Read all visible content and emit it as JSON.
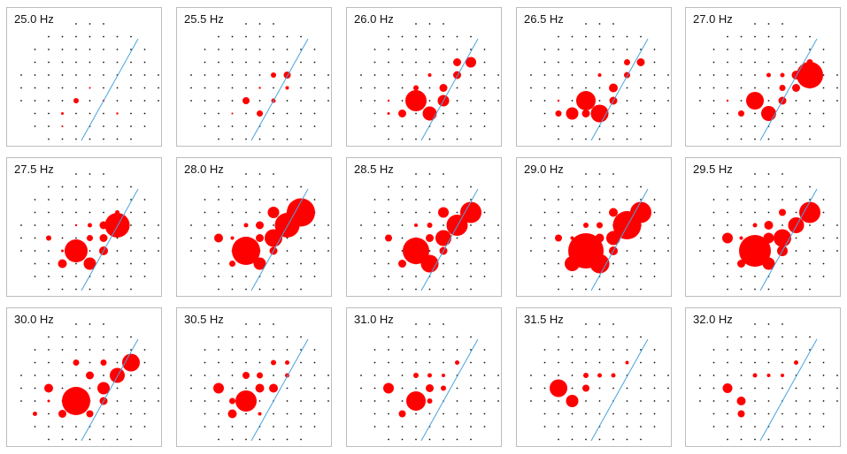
{
  "chart_data": {
    "type": "scatter",
    "colors": {
      "dot": "#111111",
      "bubble": "#ff0000",
      "line": "#4aa3df",
      "panel_border": "#bdbdbd"
    },
    "panels": [
      {
        "title": "25.0 Hz",
        "bubbles": [
          {
            "x": 6,
            "y": 6,
            "r": 1.2
          },
          {
            "x": 7,
            "y": 7,
            "r": 1.2
          },
          {
            "x": 5,
            "y": 5,
            "r": 1.0
          },
          {
            "x": 4,
            "y": 6,
            "r": 3.0
          },
          {
            "x": 3,
            "y": 7,
            "r": 1.5
          },
          {
            "x": 3,
            "y": 8,
            "r": 1.0
          }
        ]
      },
      {
        "title": "25.5 Hz",
        "bubbles": [
          {
            "x": 6,
            "y": 4,
            "r": 3.0
          },
          {
            "x": 7,
            "y": 4,
            "r": 4.0
          },
          {
            "x": 4,
            "y": 6,
            "r": 4.0
          },
          {
            "x": 6,
            "y": 6,
            "r": 2.5
          },
          {
            "x": 5,
            "y": 7,
            "r": 3.5
          },
          {
            "x": 7,
            "y": 5,
            "r": 2.0
          },
          {
            "x": 3,
            "y": 7,
            "r": 1.0
          },
          {
            "x": 5,
            "y": 5,
            "r": 1.2
          }
        ]
      },
      {
        "title": "26.0 Hz",
        "bubbles": [
          {
            "x": 4,
            "y": 6,
            "r": 12.0
          },
          {
            "x": 5,
            "y": 7,
            "r": 8.0
          },
          {
            "x": 6,
            "y": 6,
            "r": 6.5
          },
          {
            "x": 3,
            "y": 7,
            "r": 4.5
          },
          {
            "x": 8,
            "y": 3,
            "r": 6.0
          },
          {
            "x": 6,
            "y": 5,
            "r": 4.5
          },
          {
            "x": 7,
            "y": 3,
            "r": 4.5
          },
          {
            "x": 7,
            "y": 4,
            "r": 4.5
          },
          {
            "x": 4,
            "y": 5,
            "r": 3.0
          },
          {
            "x": 5,
            "y": 4,
            "r": 2.0
          },
          {
            "x": 2,
            "y": 7,
            "r": 1.5
          },
          {
            "x": 2,
            "y": 6,
            "r": 1.2
          }
        ]
      },
      {
        "title": "26.5 Hz",
        "bubbles": [
          {
            "x": 4,
            "y": 6,
            "r": 11.0
          },
          {
            "x": 5,
            "y": 7,
            "r": 10.0
          },
          {
            "x": 3,
            "y": 7,
            "r": 7.0
          },
          {
            "x": 4,
            "y": 7,
            "r": 4.5
          },
          {
            "x": 6,
            "y": 5,
            "r": 5.0
          },
          {
            "x": 8,
            "y": 3,
            "r": 4.5
          },
          {
            "x": 7,
            "y": 3,
            "r": 3.5
          },
          {
            "x": 6,
            "y": 6,
            "r": 4.5
          },
          {
            "x": 7,
            "y": 4,
            "r": 3.5
          },
          {
            "x": 2,
            "y": 7,
            "r": 3.5
          },
          {
            "x": 5,
            "y": 4,
            "r": 2.0
          },
          {
            "x": 2,
            "y": 6,
            "r": 1.2
          }
        ]
      },
      {
        "title": "27.0 Hz",
        "bubbles": [
          {
            "x": 8,
            "y": 4,
            "r": 15.0
          },
          {
            "x": 4,
            "y": 6,
            "r": 10.0
          },
          {
            "x": 5,
            "y": 7,
            "r": 8.5
          },
          {
            "x": 7,
            "y": 4,
            "r": 5.0
          },
          {
            "x": 7,
            "y": 5,
            "r": 4.5
          },
          {
            "x": 6,
            "y": 6,
            "r": 4.5
          },
          {
            "x": 3,
            "y": 7,
            "r": 3.5
          },
          {
            "x": 6,
            "y": 5,
            "r": 3.5
          },
          {
            "x": 8,
            "y": 3,
            "r": 3.5
          },
          {
            "x": 5,
            "y": 4,
            "r": 2.5
          },
          {
            "x": 6,
            "y": 4,
            "r": 2.5
          },
          {
            "x": 2,
            "y": 6,
            "r": 1.2
          }
        ]
      },
      {
        "title": "27.5 Hz",
        "bubbles": [
          {
            "x": 4,
            "y": 6,
            "r": 13.0
          },
          {
            "x": 7,
            "y": 4,
            "r": 14.0
          },
          {
            "x": 5,
            "y": 7,
            "r": 7.0
          },
          {
            "x": 3,
            "y": 7,
            "r": 5.0
          },
          {
            "x": 6,
            "y": 6,
            "r": 5.0
          },
          {
            "x": 6,
            "y": 5,
            "r": 4.5
          },
          {
            "x": 6,
            "y": 4,
            "r": 4.5
          },
          {
            "x": 5,
            "y": 5,
            "r": 3.5
          },
          {
            "x": 5,
            "y": 4,
            "r": 2.5
          },
          {
            "x": 2,
            "y": 5,
            "r": 3.0
          },
          {
            "x": 7,
            "y": 3,
            "r": 2.5
          },
          {
            "x": 3,
            "y": 6,
            "r": 1.5
          },
          {
            "x": 4,
            "y": 4,
            "r": 1.2
          }
        ]
      },
      {
        "title": "28.0 Hz",
        "bubbles": [
          {
            "x": 4,
            "y": 6,
            "r": 16.0
          },
          {
            "x": 8,
            "y": 3,
            "r": 16.0
          },
          {
            "x": 7,
            "y": 4,
            "r": 14.0
          },
          {
            "x": 6,
            "y": 5,
            "r": 10.0
          },
          {
            "x": 5,
            "y": 7,
            "r": 7.0
          },
          {
            "x": 6,
            "y": 3,
            "r": 6.5
          },
          {
            "x": 5,
            "y": 4,
            "r": 4.5
          },
          {
            "x": 5,
            "y": 5,
            "r": 4.5
          },
          {
            "x": 6,
            "y": 6,
            "r": 4.5
          },
          {
            "x": 2,
            "y": 5,
            "r": 5.0
          },
          {
            "x": 3,
            "y": 7,
            "r": 3.5
          },
          {
            "x": 4,
            "y": 4,
            "r": 2.5
          },
          {
            "x": 3,
            "y": 5,
            "r": 2.0
          }
        ]
      },
      {
        "title": "28.5 Hz",
        "bubbles": [
          {
            "x": 4,
            "y": 6,
            "r": 15.0
          },
          {
            "x": 8,
            "y": 3,
            "r": 12.0
          },
          {
            "x": 7,
            "y": 4,
            "r": 12.0
          },
          {
            "x": 6,
            "y": 5,
            "r": 9.0
          },
          {
            "x": 5,
            "y": 7,
            "r": 10.0
          },
          {
            "x": 6,
            "y": 3,
            "r": 6.0
          },
          {
            "x": 5,
            "y": 5,
            "r": 4.5
          },
          {
            "x": 6,
            "y": 6,
            "r": 4.5
          },
          {
            "x": 3,
            "y": 7,
            "r": 4.5
          },
          {
            "x": 2,
            "y": 5,
            "r": 4.0
          },
          {
            "x": 5,
            "y": 4,
            "r": 3.0
          },
          {
            "x": 4,
            "y": 4,
            "r": 2.0
          }
        ]
      },
      {
        "title": "29.0 Hz",
        "bubbles": [
          {
            "x": 4,
            "y": 6,
            "r": 20.0
          },
          {
            "x": 8,
            "y": 3,
            "r": 12.0
          },
          {
            "x": 7,
            "y": 4,
            "r": 16.0
          },
          {
            "x": 6,
            "y": 5,
            "r": 8.0
          },
          {
            "x": 5,
            "y": 7,
            "r": 11.0
          },
          {
            "x": 3,
            "y": 7,
            "r": 8.5
          },
          {
            "x": 6,
            "y": 3,
            "r": 5.0
          },
          {
            "x": 5,
            "y": 5,
            "r": 5.0
          },
          {
            "x": 6,
            "y": 6,
            "r": 5.0
          },
          {
            "x": 2,
            "y": 5,
            "r": 4.0
          },
          {
            "x": 5,
            "y": 4,
            "r": 3.5
          },
          {
            "x": 4,
            "y": 4,
            "r": 3.0
          },
          {
            "x": 3,
            "y": 5,
            "r": 2.0
          }
        ]
      },
      {
        "title": "29.5 Hz",
        "bubbles": [
          {
            "x": 4,
            "y": 6,
            "r": 18.0
          },
          {
            "x": 8,
            "y": 3,
            "r": 12.0
          },
          {
            "x": 7,
            "y": 4,
            "r": 9.0
          },
          {
            "x": 6,
            "y": 5,
            "r": 10.0
          },
          {
            "x": 5,
            "y": 7,
            "r": 7.0
          },
          {
            "x": 6,
            "y": 6,
            "r": 6.0
          },
          {
            "x": 5,
            "y": 5,
            "r": 6.0
          },
          {
            "x": 5,
            "y": 4,
            "r": 5.0
          },
          {
            "x": 2,
            "y": 5,
            "r": 6.0
          },
          {
            "x": 3,
            "y": 7,
            "r": 4.5
          },
          {
            "x": 6,
            "y": 3,
            "r": 4.0
          },
          {
            "x": 4,
            "y": 4,
            "r": 2.5
          },
          {
            "x": 3,
            "y": 5,
            "r": 2.0
          }
        ]
      },
      {
        "title": "30.0 Hz",
        "bubbles": [
          {
            "x": 4,
            "y": 6,
            "r": 16.0
          },
          {
            "x": 8,
            "y": 3,
            "r": 10.0
          },
          {
            "x": 7,
            "y": 4,
            "r": 8.5
          },
          {
            "x": 6,
            "y": 5,
            "r": 7.0
          },
          {
            "x": 2,
            "y": 5,
            "r": 5.0
          },
          {
            "x": 5,
            "y": 4,
            "r": 4.5
          },
          {
            "x": 3,
            "y": 7,
            "r": 4.5
          },
          {
            "x": 5,
            "y": 7,
            "r": 4.0
          },
          {
            "x": 6,
            "y": 6,
            "r": 4.5
          },
          {
            "x": 4,
            "y": 3,
            "r": 3.5
          },
          {
            "x": 6,
            "y": 3,
            "r": 3.5
          },
          {
            "x": 1,
            "y": 7,
            "r": 2.5
          },
          {
            "x": 2,
            "y": 6,
            "r": 1.5
          }
        ]
      },
      {
        "title": "30.5 Hz",
        "bubbles": [
          {
            "x": 4,
            "y": 6,
            "r": 12.0
          },
          {
            "x": 2,
            "y": 5,
            "r": 6.0
          },
          {
            "x": 6,
            "y": 5,
            "r": 5.0
          },
          {
            "x": 5,
            "y": 5,
            "r": 5.0
          },
          {
            "x": 3,
            "y": 7,
            "r": 5.0
          },
          {
            "x": 4,
            "y": 4,
            "r": 4.0
          },
          {
            "x": 5,
            "y": 4,
            "r": 3.5
          },
          {
            "x": 3,
            "y": 6,
            "r": 3.5
          },
          {
            "x": 6,
            "y": 3,
            "r": 3.0
          },
          {
            "x": 7,
            "y": 3,
            "r": 2.5
          },
          {
            "x": 7,
            "y": 4,
            "r": 2.5
          },
          {
            "x": 5,
            "y": 7,
            "r": 2.0
          }
        ]
      },
      {
        "title": "31.0 Hz",
        "bubbles": [
          {
            "x": 4,
            "y": 6,
            "r": 11.0
          },
          {
            "x": 2,
            "y": 5,
            "r": 6.0
          },
          {
            "x": 5,
            "y": 5,
            "r": 4.5
          },
          {
            "x": 5,
            "y": 6,
            "r": 3.0
          },
          {
            "x": 3,
            "y": 7,
            "r": 4.0
          },
          {
            "x": 4,
            "y": 4,
            "r": 3.0
          },
          {
            "x": 6,
            "y": 5,
            "r": 3.0
          },
          {
            "x": 5,
            "y": 4,
            "r": 2.5
          },
          {
            "x": 6,
            "y": 4,
            "r": 2.0
          },
          {
            "x": 7,
            "y": 3,
            "r": 2.5
          }
        ]
      },
      {
        "title": "31.5 Hz",
        "bubbles": [
          {
            "x": 2,
            "y": 5,
            "r": 10.0
          },
          {
            "x": 3,
            "y": 6,
            "r": 7.0
          },
          {
            "x": 4,
            "y": 5,
            "r": 4.0
          },
          {
            "x": 4,
            "y": 4,
            "r": 3.0
          },
          {
            "x": 5,
            "y": 4,
            "r": 2.5
          },
          {
            "x": 6,
            "y": 4,
            "r": 2.5
          },
          {
            "x": 7,
            "y": 3,
            "r": 2.0
          }
        ]
      },
      {
        "title": "32.0 Hz",
        "bubbles": [
          {
            "x": 2,
            "y": 5,
            "r": 5.5
          },
          {
            "x": 3,
            "y": 6,
            "r": 5.0
          },
          {
            "x": 3,
            "y": 7,
            "r": 4.0
          },
          {
            "x": 4,
            "y": 4,
            "r": 2.5
          },
          {
            "x": 5,
            "y": 4,
            "r": 2.0
          },
          {
            "x": 6,
            "y": 4,
            "r": 2.0
          },
          {
            "x": 7,
            "y": 3,
            "r": 2.5
          }
        ]
      }
    ]
  }
}
